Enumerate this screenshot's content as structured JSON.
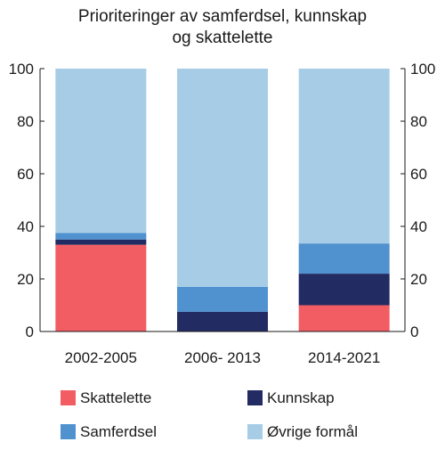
{
  "chart_data": {
    "type": "bar",
    "stacked": true,
    "title": [
      "Prioriteringer av samferdsel, kunnskap",
      "og skattelette"
    ],
    "categories": [
      "2002-2005",
      "2006- 2013",
      "2014-2021"
    ],
    "series": [
      {
        "name": "Skattelette",
        "color": "#f15d63",
        "values": [
          33,
          0,
          10
        ]
      },
      {
        "name": "Kunnskap",
        "color": "#222b62",
        "values": [
          2,
          7.5,
          12
        ]
      },
      {
        "name": "Samferdsel",
        "color": "#5091cf",
        "values": [
          2.5,
          9.5,
          11.5
        ]
      },
      {
        "name": "Øvrige formål",
        "color": "#a7cde6",
        "values": [
          62.5,
          83,
          66.5
        ]
      }
    ],
    "ylim": [
      0,
      100
    ],
    "yticks": [
      "0",
      "20",
      "40",
      "60",
      "80",
      "100"
    ],
    "ytick_values": [
      0,
      20,
      40,
      60,
      80,
      100
    ],
    "legend_position": "bottom",
    "legend_order": [
      0,
      1,
      2,
      3
    ],
    "grid": false
  }
}
